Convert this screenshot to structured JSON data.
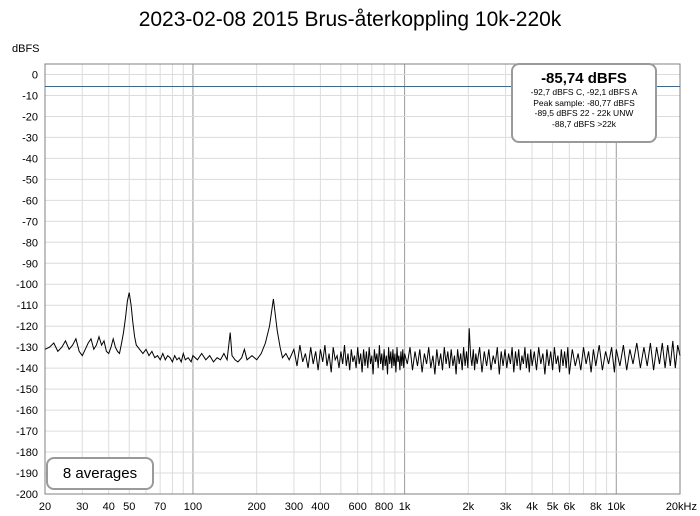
{
  "chart_data": {
    "type": "line",
    "title": "2023-02-08 2015 Brus-återkoppling 10k-220k",
    "ylabel": "dBFS",
    "xlabel": "",
    "x_scale": "log",
    "xlim": [
      20,
      20000
    ],
    "ylim": [
      -200,
      5
    ],
    "grid": true,
    "x_ticks": [
      20,
      30,
      40,
      50,
      70,
      100,
      200,
      300,
      400,
      600,
      800,
      1000,
      2000,
      3000,
      4000,
      5000,
      6000,
      8000,
      10000,
      20000
    ],
    "x_tick_labels": [
      "20",
      "30",
      "40",
      "50",
      "70",
      "100",
      "200",
      "300",
      "400",
      "600",
      "800",
      "1k",
      "2k",
      "3k",
      "4k",
      "5k",
      "6k",
      "8k",
      "10k",
      "20kHz"
    ],
    "y_ticks": [
      0,
      -10,
      -20,
      -30,
      -40,
      -50,
      -60,
      -70,
      -80,
      -90,
      -100,
      -110,
      -120,
      -130,
      -140,
      -150,
      -160,
      -170,
      -180,
      -190,
      -200
    ],
    "reference_level": -5.7,
    "series": [
      {
        "color": "#000000",
        "points": [
          [
            20,
            -131
          ],
          [
            21,
            -130
          ],
          [
            22,
            -128
          ],
          [
            23,
            -132
          ],
          [
            24,
            -130
          ],
          [
            25,
            -127
          ],
          [
            26,
            -131
          ],
          [
            27,
            -129
          ],
          [
            28,
            -126
          ],
          [
            29,
            -132
          ],
          [
            30,
            -134
          ],
          [
            31,
            -131
          ],
          [
            32,
            -128
          ],
          [
            33,
            -126
          ],
          [
            34,
            -131
          ],
          [
            35,
            -129
          ],
          [
            36,
            -125
          ],
          [
            37,
            -129
          ],
          [
            38,
            -127
          ],
          [
            39,
            -132
          ],
          [
            40,
            -133
          ],
          [
            41,
            -130
          ],
          [
            42,
            -126
          ],
          [
            43,
            -130
          ],
          [
            44,
            -132
          ],
          [
            45,
            -133
          ],
          [
            46,
            -128
          ],
          [
            47,
            -123
          ],
          [
            48,
            -116
          ],
          [
            49,
            -108
          ],
          [
            50,
            -104
          ],
          [
            51,
            -110
          ],
          [
            52,
            -118
          ],
          [
            53,
            -125
          ],
          [
            54,
            -129
          ],
          [
            56,
            -131
          ],
          [
            58,
            -133
          ],
          [
            60,
            -131
          ],
          [
            62,
            -134
          ],
          [
            64,
            -132
          ],
          [
            66,
            -135
          ],
          [
            68,
            -134
          ],
          [
            70,
            -136
          ],
          [
            72,
            -133
          ],
          [
            74,
            -136
          ],
          [
            76,
            -134
          ],
          [
            78,
            -135
          ],
          [
            80,
            -137
          ],
          [
            82,
            -134
          ],
          [
            84,
            -136
          ],
          [
            86,
            -135
          ],
          [
            88,
            -137
          ],
          [
            90,
            -133
          ],
          [
            92,
            -136
          ],
          [
            95,
            -135
          ],
          [
            98,
            -137
          ],
          [
            100,
            -134
          ],
          [
            105,
            -136
          ],
          [
            110,
            -133
          ],
          [
            115,
            -136
          ],
          [
            120,
            -134
          ],
          [
            125,
            -137
          ],
          [
            130,
            -135
          ],
          [
            135,
            -136
          ],
          [
            140,
            -133
          ],
          [
            145,
            -136
          ],
          [
            150,
            -123
          ],
          [
            153,
            -134
          ],
          [
            158,
            -136
          ],
          [
            163,
            -137
          ],
          [
            170,
            -135
          ],
          [
            175,
            -131
          ],
          [
            180,
            -136
          ],
          [
            190,
            -134
          ],
          [
            200,
            -136
          ],
          [
            210,
            -133
          ],
          [
            220,
            -128
          ],
          [
            230,
            -120
          ],
          [
            236,
            -112
          ],
          [
            240,
            -107
          ],
          [
            244,
            -113
          ],
          [
            250,
            -122
          ],
          [
            258,
            -130
          ],
          [
            265,
            -135
          ],
          [
            275,
            -133
          ],
          [
            285,
            -136
          ],
          [
            300,
            -131
          ],
          [
            310,
            -139
          ],
          [
            320,
            -129
          ],
          [
            330,
            -137
          ],
          [
            340,
            -133
          ],
          [
            350,
            -140
          ],
          [
            360,
            -130
          ],
          [
            370,
            -138
          ],
          [
            380,
            -132
          ],
          [
            390,
            -141
          ],
          [
            400,
            -131
          ],
          [
            410,
            -137
          ],
          [
            420,
            -129
          ],
          [
            430,
            -139
          ],
          [
            440,
            -133
          ],
          [
            450,
            -142
          ],
          [
            460,
            -130
          ],
          [
            470,
            -136
          ],
          [
            480,
            -134
          ],
          [
            490,
            -140
          ],
          [
            500,
            -132
          ],
          [
            510,
            -138
          ],
          [
            520,
            -129
          ],
          [
            530,
            -139
          ],
          [
            540,
            -133
          ],
          [
            550,
            -141
          ],
          [
            560,
            -131
          ],
          [
            570,
            -137
          ],
          [
            580,
            -134
          ],
          [
            590,
            -140
          ],
          [
            600,
            -130
          ],
          [
            610,
            -138
          ],
          [
            620,
            -133
          ],
          [
            630,
            -142
          ],
          [
            640,
            -131
          ],
          [
            650,
            -139
          ],
          [
            660,
            -132
          ],
          [
            670,
            -140
          ],
          [
            680,
            -130
          ],
          [
            690,
            -138
          ],
          [
            700,
            -134
          ],
          [
            710,
            -143
          ],
          [
            720,
            -131
          ],
          [
            730,
            -137
          ],
          [
            740,
            -133
          ],
          [
            750,
            -140
          ],
          [
            760,
            -129
          ],
          [
            770,
            -138
          ],
          [
            780,
            -133
          ],
          [
            790,
            -141
          ],
          [
            800,
            -131
          ],
          [
            810,
            -139
          ],
          [
            820,
            -134
          ],
          [
            830,
            -143
          ],
          [
            840,
            -130
          ],
          [
            850,
            -138
          ],
          [
            860,
            -132
          ],
          [
            870,
            -140
          ],
          [
            880,
            -131
          ],
          [
            890,
            -139
          ],
          [
            900,
            -133
          ],
          [
            910,
            -142
          ],
          [
            920,
            -130
          ],
          [
            930,
            -137
          ],
          [
            940,
            -134
          ],
          [
            950,
            -141
          ],
          [
            960,
            -132
          ],
          [
            970,
            -139
          ],
          [
            980,
            -131
          ],
          [
            990,
            -140
          ],
          [
            1000,
            -133
          ],
          [
            1030,
            -138
          ],
          [
            1060,
            -130
          ],
          [
            1090,
            -141
          ],
          [
            1120,
            -132
          ],
          [
            1150,
            -139
          ],
          [
            1180,
            -131
          ],
          [
            1210,
            -142
          ],
          [
            1240,
            -133
          ],
          [
            1270,
            -138
          ],
          [
            1300,
            -130
          ],
          [
            1330,
            -140
          ],
          [
            1360,
            -134
          ],
          [
            1390,
            -143
          ],
          [
            1420,
            -131
          ],
          [
            1450,
            -139
          ],
          [
            1480,
            -133
          ],
          [
            1510,
            -141
          ],
          [
            1540,
            -130
          ],
          [
            1570,
            -138
          ],
          [
            1600,
            -132
          ],
          [
            1630,
            -140
          ],
          [
            1660,
            -131
          ],
          [
            1690,
            -139
          ],
          [
            1720,
            -134
          ],
          [
            1750,
            -143
          ],
          [
            1780,
            -131
          ],
          [
            1810,
            -138
          ],
          [
            1840,
            -133
          ],
          [
            1870,
            -141
          ],
          [
            1900,
            -130
          ],
          [
            1930,
            -139
          ],
          [
            1960,
            -132
          ],
          [
            1990,
            -140
          ],
          [
            2020,
            -121
          ],
          [
            2050,
            -134
          ],
          [
            2080,
            -139
          ],
          [
            2110,
            -131
          ],
          [
            2140,
            -141
          ],
          [
            2170,
            -133
          ],
          [
            2200,
            -138
          ],
          [
            2260,
            -130
          ],
          [
            2320,
            -142
          ],
          [
            2380,
            -132
          ],
          [
            2440,
            -139
          ],
          [
            2500,
            -131
          ],
          [
            2560,
            -141
          ],
          [
            2620,
            -134
          ],
          [
            2680,
            -138
          ],
          [
            2740,
            -130
          ],
          [
            2800,
            -143
          ],
          [
            2860,
            -132
          ],
          [
            2920,
            -139
          ],
          [
            2980,
            -131
          ],
          [
            3040,
            -140
          ],
          [
            3100,
            -133
          ],
          [
            3160,
            -138
          ],
          [
            3220,
            -130
          ],
          [
            3280,
            -142
          ],
          [
            3340,
            -132
          ],
          [
            3400,
            -139
          ],
          [
            3460,
            -131
          ],
          [
            3520,
            -141
          ],
          [
            3580,
            -134
          ],
          [
            3640,
            -138
          ],
          [
            3700,
            -130
          ],
          [
            3760,
            -140
          ],
          [
            3820,
            -133
          ],
          [
            3880,
            -142
          ],
          [
            3940,
            -131
          ],
          [
            4000,
            -139
          ],
          [
            4100,
            -132
          ],
          [
            4200,
            -141
          ],
          [
            4300,
            -130
          ],
          [
            4400,
            -138
          ],
          [
            4500,
            -133
          ],
          [
            4600,
            -143
          ],
          [
            4700,
            -131
          ],
          [
            4800,
            -139
          ],
          [
            4900,
            -132
          ],
          [
            5000,
            -141
          ],
          [
            5100,
            -130
          ],
          [
            5200,
            -138
          ],
          [
            5300,
            -134
          ],
          [
            5400,
            -142
          ],
          [
            5500,
            -131
          ],
          [
            5600,
            -139
          ],
          [
            5700,
            -132
          ],
          [
            5800,
            -140
          ],
          [
            5900,
            -130
          ],
          [
            6000,
            -143
          ],
          [
            6200,
            -131
          ],
          [
            6400,
            -139
          ],
          [
            6600,
            -133
          ],
          [
            6800,
            -141
          ],
          [
            7000,
            -130
          ],
          [
            7200,
            -138
          ],
          [
            7400,
            -132
          ],
          [
            7600,
            -142
          ],
          [
            7800,
            -131
          ],
          [
            8000,
            -139
          ],
          [
            8300,
            -129
          ],
          [
            8600,
            -141
          ],
          [
            8900,
            -132
          ],
          [
            9200,
            -138
          ],
          [
            9500,
            -130
          ],
          [
            9800,
            -142
          ],
          [
            10000,
            -131
          ],
          [
            10400,
            -139
          ],
          [
            10800,
            -129
          ],
          [
            11200,
            -141
          ],
          [
            11600,
            -131
          ],
          [
            12000,
            -138
          ],
          [
            12500,
            -128
          ],
          [
            13000,
            -140
          ],
          [
            13500,
            -130
          ],
          [
            14000,
            -139
          ],
          [
            14500,
            -128
          ],
          [
            15000,
            -141
          ],
          [
            15500,
            -130
          ],
          [
            16000,
            -138
          ],
          [
            16500,
            -128
          ],
          [
            17000,
            -140
          ],
          [
            17500,
            -129
          ],
          [
            18000,
            -139
          ],
          [
            18500,
            -127
          ],
          [
            19000,
            -140
          ],
          [
            19500,
            -129
          ],
          [
            20000,
            -134
          ]
        ]
      }
    ]
  },
  "readout": {
    "main": "-85,74 dBFS",
    "lines": [
      "-92,7 dBFS C, -92,1 dBFS A",
      "Peak sample: -80,77 dBFS",
      "-89,5 dBFS 22 - 22k UNW",
      "-88,7 dBFS >22k"
    ]
  },
  "averages_label": "8 averages",
  "colors": {
    "trace": "#000000",
    "reference_line": "#1f6fbf",
    "grid_major": "#9a9a9a",
    "grid_minor": "#dcdcdc",
    "box_border": "#9a9a9a"
  }
}
